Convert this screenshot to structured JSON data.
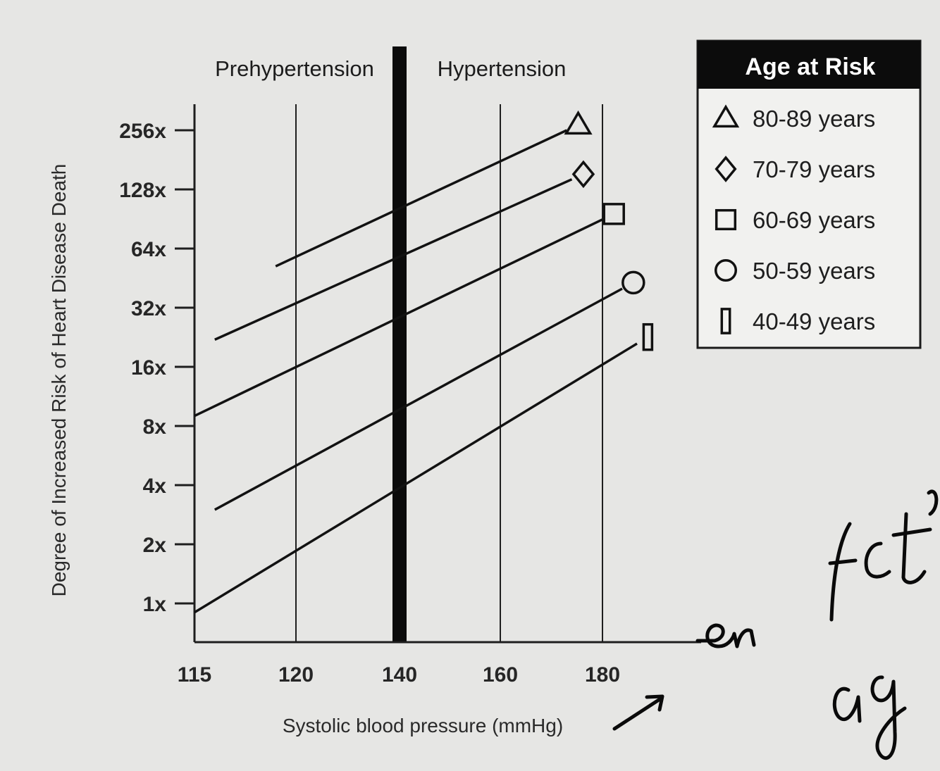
{
  "chart_data": {
    "type": "line",
    "y_scale": "log2",
    "xlabel": "Systolic blood pressure (mmHg)",
    "ylabel": "Degree of Increased Risk of Heart Disease Death",
    "x_tick_labels": [
      "115",
      "120",
      "140",
      "160",
      "180"
    ],
    "y_tick_labels": [
      "1x",
      "2x",
      "4x",
      "8x",
      "16x",
      "32x",
      "64x",
      "128x",
      "256x"
    ],
    "regions": [
      {
        "label": "Prehypertension"
      },
      {
        "label": "Hypertension"
      }
    ],
    "divider_x": 140,
    "legend": {
      "title": "Age at Risk",
      "placement": "right"
    },
    "grid": "vertical lines at 120, 160, 180",
    "series": [
      {
        "name": "80-89 years",
        "marker": "triangle",
        "x": [
          119,
          173
        ],
        "y": [
          52,
          256
        ]
      },
      {
        "name": "70-79 years",
        "marker": "diamond",
        "x": [
          116,
          174
        ],
        "y": [
          22,
          144
        ]
      },
      {
        "name": "60-69 years",
        "marker": "square",
        "x": [
          115,
          180
        ],
        "y": [
          9,
          90
        ]
      },
      {
        "name": "50-59 years",
        "marker": "circle",
        "x": [
          116,
          184
        ],
        "y": [
          3,
          40
        ]
      },
      {
        "name": "40-49 years",
        "marker": "rectangle",
        "x": [
          115,
          187
        ],
        "y": [
          0.9,
          21
        ]
      }
    ]
  },
  "annotations": {
    "handwriting": [
      "en",
      "fct",
      "age"
    ]
  }
}
